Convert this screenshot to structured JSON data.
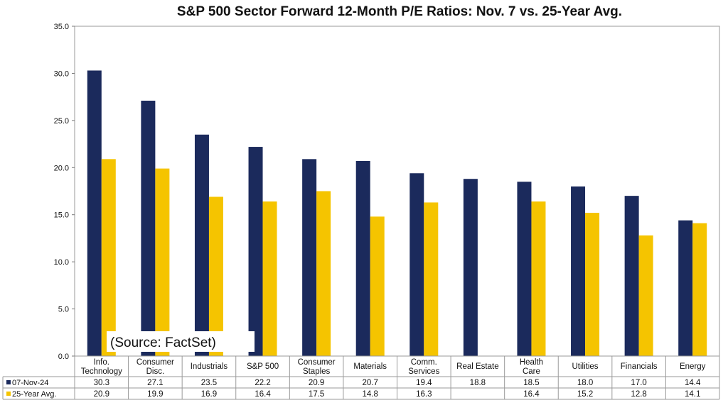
{
  "chart_data": {
    "type": "bar",
    "title": "S&P 500 Sector Forward 12-Month P/E Ratios: Nov. 7 vs. 25-Year Avg.",
    "categories": [
      [
        "Info.",
        "Technology"
      ],
      [
        "Consumer",
        "Disc."
      ],
      [
        "Industrials"
      ],
      [
        "S&P 500"
      ],
      [
        "Consumer",
        "Staples"
      ],
      [
        "Materials"
      ],
      [
        "Comm.",
        "Services"
      ],
      [
        "Real Estate"
      ],
      [
        "Health",
        "Care"
      ],
      [
        "Utilities"
      ],
      [
        "Financials"
      ],
      [
        "Energy"
      ]
    ],
    "series": [
      {
        "name": "07-Nov-24",
        "color": "#1b2a5c",
        "values": [
          30.3,
          27.1,
          23.5,
          22.2,
          20.9,
          20.7,
          19.4,
          18.8,
          18.5,
          18.0,
          17.0,
          14.4
        ],
        "labels": [
          "30.3",
          "27.1",
          "23.5",
          "22.2",
          "20.9",
          "20.7",
          "19.4",
          "18.8",
          "18.5",
          "18.0",
          "17.0",
          "14.4"
        ]
      },
      {
        "name": "25-Year Avg.",
        "color": "#f5c400",
        "values": [
          20.9,
          19.9,
          16.9,
          16.4,
          17.5,
          14.8,
          16.3,
          null,
          16.4,
          15.2,
          12.8,
          14.1
        ],
        "labels": [
          "20.9",
          "19.9",
          "16.9",
          "16.4",
          "17.5",
          "14.8",
          "16.3",
          "",
          "16.4",
          "15.2",
          "12.8",
          "14.1"
        ]
      }
    ],
    "yticks": [
      "0.0",
      "5.0",
      "10.0",
      "15.0",
      "20.0",
      "25.0",
      "30.0",
      "35.0"
    ],
    "ylim": [
      0,
      35
    ],
    "grid": false,
    "legend": "data-table",
    "annotation": "(Source: FactSet)"
  }
}
